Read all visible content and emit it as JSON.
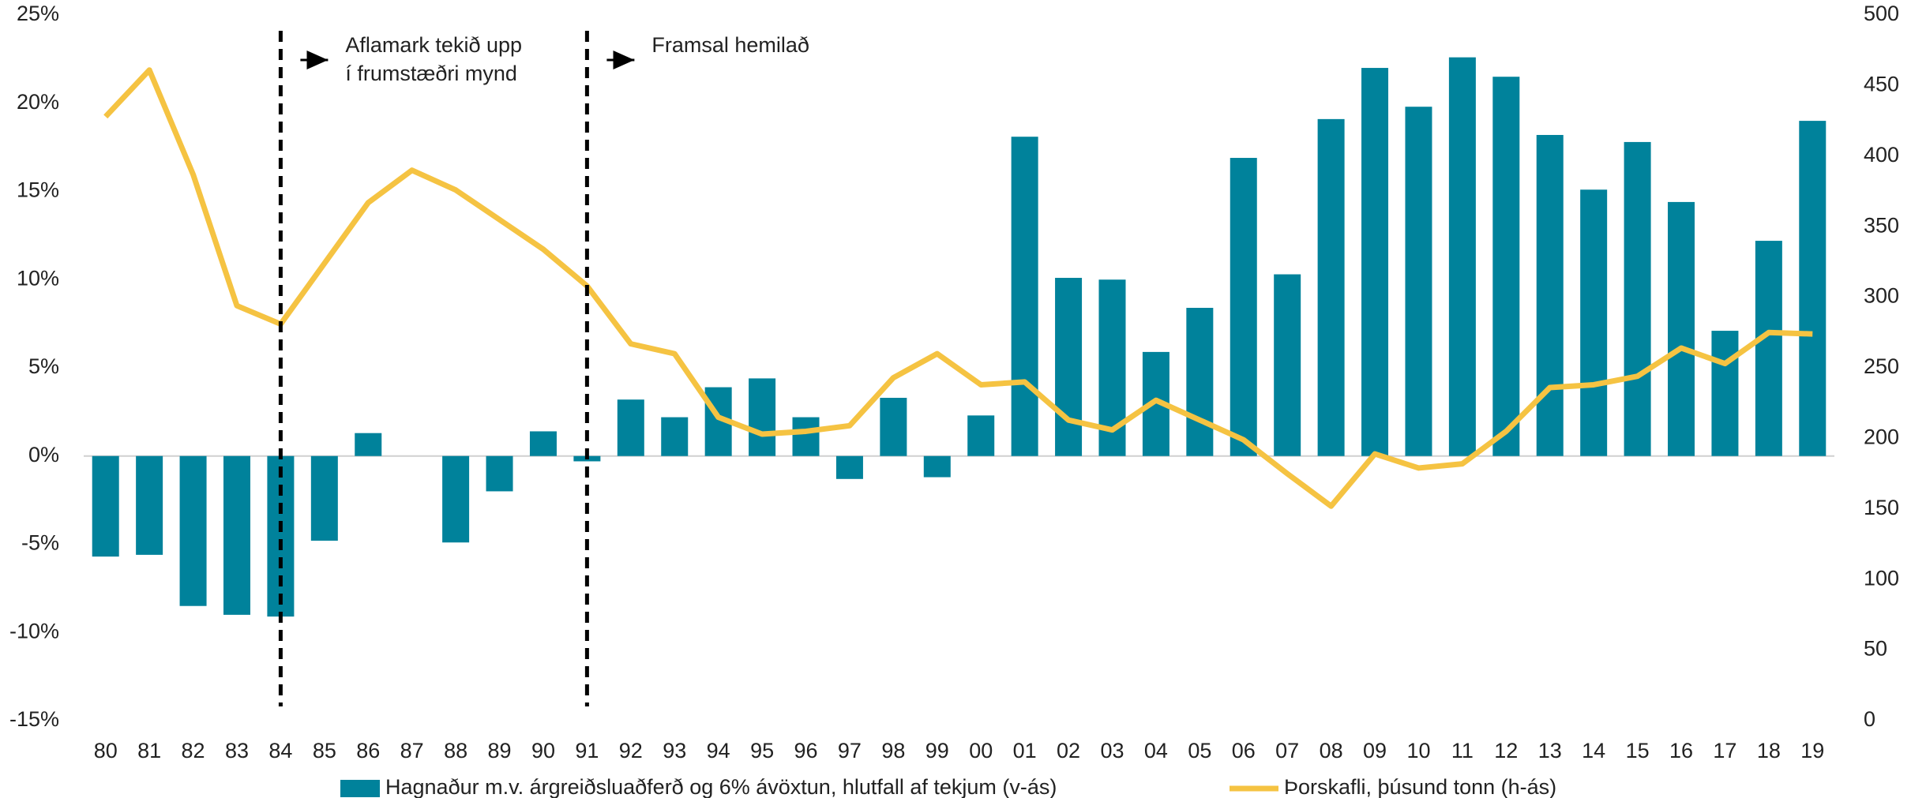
{
  "chart_data": {
    "type": "bar_line",
    "categories": [
      "80",
      "81",
      "82",
      "83",
      "84",
      "85",
      "86",
      "87",
      "88",
      "89",
      "90",
      "91",
      "92",
      "93",
      "94",
      "95",
      "96",
      "97",
      "98",
      "99",
      "00",
      "01",
      "02",
      "03",
      "04",
      "05",
      "06",
      "07",
      "08",
      "09",
      "10",
      "11",
      "12",
      "13",
      "14",
      "15",
      "16",
      "17",
      "18",
      "19"
    ],
    "series": [
      {
        "name": "Hagnaður m.v. árgreiðsluaðferð og 6% ávöxtun, hlutfall af tekjum (v-ás)",
        "type": "bar",
        "color": "#00829b",
        "values": [
          -5.7,
          -5.6,
          -8.5,
          -9.0,
          -9.1,
          -4.8,
          1.3,
          0,
          -4.9,
          -2.0,
          1.4,
          -0.3,
          3.2,
          2.2,
          3.9,
          4.4,
          2.2,
          -1.3,
          3.3,
          -1.2,
          2.3,
          18.1,
          10.1,
          10.0,
          5.9,
          8.4,
          16.9,
          10.3,
          19.1,
          22.0,
          19.8,
          22.6,
          21.5,
          18.2,
          15.1,
          17.8,
          14.4,
          7.1,
          12.2,
          19.0
        ]
      },
      {
        "name": "Þorskafli, þúsund tonn  (h-ás)",
        "type": "line",
        "axis": "y2",
        "color": "#f5c342",
        "values": [
          428,
          461,
          387,
          294,
          281,
          324,
          367,
          390,
          376,
          355,
          334,
          308,
          267,
          260,
          215,
          203,
          205,
          209,
          243,
          260,
          238,
          240,
          213,
          206,
          227,
          213,
          199,
          175,
          152,
          189,
          179,
          182,
          205,
          236,
          238,
          244,
          264,
          253,
          275,
          274
        ]
      }
    ],
    "ylim": [
      -15,
      25
    ],
    "yticks": [
      {
        "value": -15,
        "label": "-15%"
      },
      {
        "value": -10,
        "label": "-10%"
      },
      {
        "value": -5,
        "label": "-5%"
      },
      {
        "value": 0,
        "label": "0%"
      },
      {
        "value": 5,
        "label": "5%"
      },
      {
        "value": 10,
        "label": "10%"
      },
      {
        "value": 15,
        "label": "15%"
      },
      {
        "value": 20,
        "label": "20%"
      },
      {
        "value": 25,
        "label": "25%"
      }
    ],
    "y2lim": [
      0,
      500
    ],
    "y2ticks": [
      0,
      50,
      100,
      150,
      200,
      250,
      300,
      350,
      400,
      450,
      500
    ],
    "annotations": [
      {
        "category": "84",
        "lines": [
          "Aflamark tekið upp",
          "í frumstæðri mynd"
        ]
      },
      {
        "category": "91",
        "lines": [
          "Framsal hemilað"
        ]
      }
    ],
    "legend": "bottom"
  }
}
